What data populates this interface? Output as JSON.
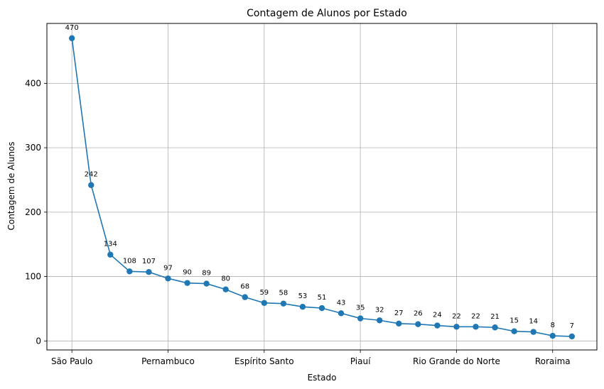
{
  "chart_data": {
    "type": "line",
    "title": "Contagem de Alunos por Estado",
    "xlabel": "Estado",
    "ylabel": "Contagem de Alunos",
    "x_tick_labels": [
      {
        "index": 0,
        "label": "São Paulo"
      },
      {
        "index": 5,
        "label": "Pernambuco"
      },
      {
        "index": 10,
        "label": "Espírito Santo"
      },
      {
        "index": 15,
        "label": "Piauí"
      },
      {
        "index": 20,
        "label": "Rio Grande do Norte"
      },
      {
        "index": 25,
        "label": "Roraima"
      }
    ],
    "y_ticks": [
      0,
      100,
      200,
      300,
      400
    ],
    "ylim": [
      -14,
      493
    ],
    "xlim": [
      -1.3,
      27.3
    ],
    "grid": true,
    "line_color": "#1f77b4",
    "marker": "circle",
    "values": [
      470,
      242,
      134,
      108,
      107,
      97,
      90,
      89,
      80,
      68,
      59,
      58,
      53,
      51,
      43,
      35,
      32,
      27,
      26,
      24,
      22,
      22,
      21,
      15,
      14,
      8,
      7
    ]
  }
}
